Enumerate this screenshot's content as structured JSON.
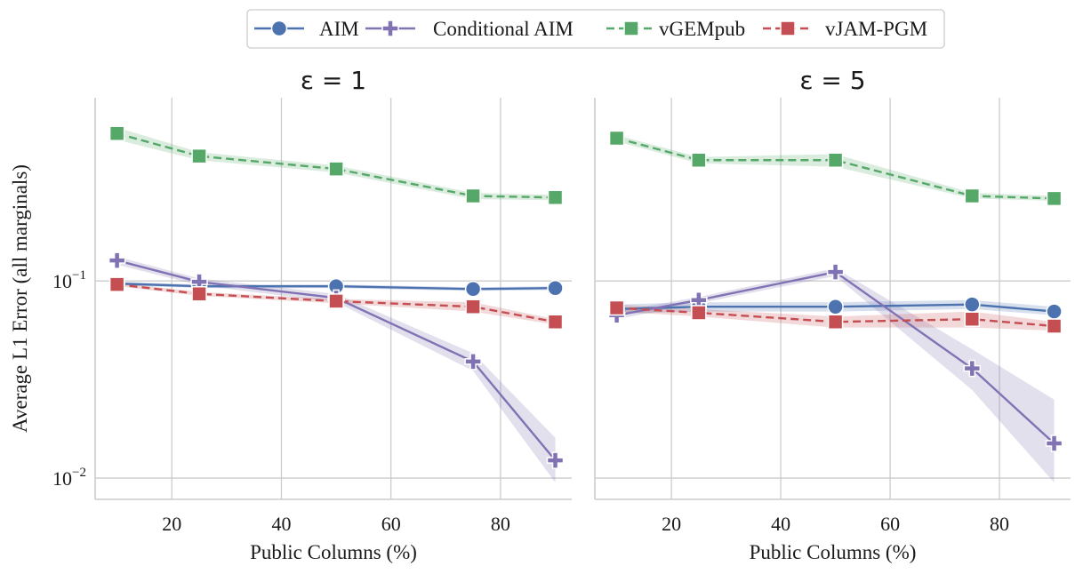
{
  "legend": {
    "entries": [
      "AIM",
      "Conditional AIM",
      "vGEMpub",
      "vJAM-PGM"
    ]
  },
  "shared": {
    "xlabel": "Public Columns (%)",
    "ylabel": "Average L1 Error (all marginals)",
    "xticks": [
      20,
      40,
      60,
      80
    ],
    "yticks": [
      {
        "value": 0.1,
        "base": "10",
        "exp": "−1"
      },
      {
        "value": 0.01,
        "base": "10",
        "exp": "−2"
      }
    ]
  },
  "colors": {
    "AIM": "#4c72b0",
    "Conditional AIM": "#8172b3",
    "vGEMpub": "#55a868",
    "vJAM-PGM": "#c44e52"
  },
  "chart_data": [
    {
      "type": "line",
      "title": "ε = 1",
      "xlabel": "Public Columns (%)",
      "ylabel": "Average L1 Error (all marginals)",
      "yscale": "log",
      "xlim": [
        6,
        93
      ],
      "ylim": [
        0.0078,
        0.85
      ],
      "grid": true,
      "x": [
        10,
        25,
        50,
        75,
        90
      ],
      "series": [
        {
          "name": "AIM",
          "marker": "circle",
          "dash": "solid",
          "values": [
            0.097,
            0.094,
            0.094,
            0.091,
            0.092
          ],
          "lower": [
            0.095,
            0.092,
            0.092,
            0.089,
            0.09
          ],
          "upper": [
            0.099,
            0.096,
            0.096,
            0.093,
            0.094
          ]
        },
        {
          "name": "Conditional AIM",
          "marker": "plus",
          "dash": "solid",
          "values": [
            0.127,
            0.099,
            0.082,
            0.039,
            0.0123
          ],
          "lower": [
            0.121,
            0.095,
            0.078,
            0.035,
            0.0095
          ],
          "upper": [
            0.133,
            0.103,
            0.086,
            0.043,
            0.016
          ]
        },
        {
          "name": "vGEMpub",
          "marker": "square",
          "dash": "dashed",
          "values": [
            0.56,
            0.43,
            0.37,
            0.27,
            0.265
          ],
          "lower": [
            0.52,
            0.41,
            0.355,
            0.26,
            0.257
          ],
          "upper": [
            0.6,
            0.45,
            0.385,
            0.28,
            0.273
          ]
        },
        {
          "name": "vJAM-PGM",
          "marker": "square",
          "dash": "dashed",
          "values": [
            0.096,
            0.086,
            0.079,
            0.074,
            0.062
          ],
          "lower": [
            0.094,
            0.084,
            0.077,
            0.07,
            0.06
          ],
          "upper": [
            0.098,
            0.088,
            0.081,
            0.078,
            0.064
          ]
        }
      ]
    },
    {
      "type": "line",
      "title": "ε = 5",
      "xlabel": "Public Columns (%)",
      "ylabel": "",
      "yscale": "log",
      "xlim": [
        6,
        93
      ],
      "ylim": [
        0.0078,
        0.85
      ],
      "grid": true,
      "x": [
        10,
        25,
        50,
        75,
        90
      ],
      "series": [
        {
          "name": "AIM",
          "marker": "circle",
          "dash": "solid",
          "values": [
            0.072,
            0.074,
            0.074,
            0.076,
            0.07
          ],
          "lower": [
            0.068,
            0.07,
            0.07,
            0.072,
            0.067
          ],
          "upper": [
            0.076,
            0.078,
            0.078,
            0.08,
            0.074
          ]
        },
        {
          "name": "Conditional AIM",
          "marker": "plus",
          "dash": "solid",
          "values": [
            0.067,
            0.08,
            0.111,
            0.036,
            0.015
          ],
          "lower": [
            0.064,
            0.077,
            0.106,
            0.028,
            0.0095
          ],
          "upper": [
            0.07,
            0.083,
            0.116,
            0.045,
            0.025
          ]
        },
        {
          "name": "vGEMpub",
          "marker": "square",
          "dash": "dashed",
          "values": [
            0.53,
            0.41,
            0.41,
            0.27,
            0.262
          ],
          "lower": [
            0.51,
            0.395,
            0.38,
            0.262,
            0.255
          ],
          "upper": [
            0.55,
            0.425,
            0.44,
            0.28,
            0.27
          ]
        },
        {
          "name": "vJAM-PGM",
          "marker": "square",
          "dash": "dashed",
          "values": [
            0.073,
            0.069,
            0.062,
            0.064,
            0.059
          ],
          "lower": [
            0.07,
            0.066,
            0.058,
            0.058,
            0.056
          ],
          "upper": [
            0.076,
            0.072,
            0.066,
            0.07,
            0.062
          ]
        }
      ]
    }
  ]
}
